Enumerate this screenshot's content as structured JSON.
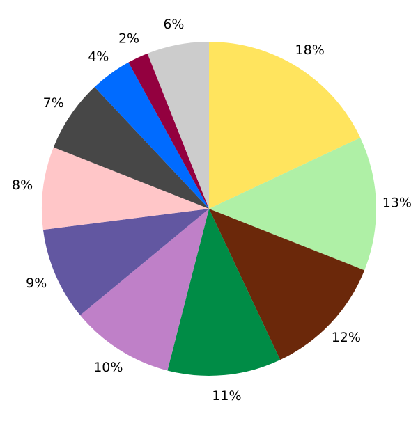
{
  "chart_data": {
    "type": "pie",
    "start_angle": "top",
    "direction": "clockwise",
    "values": [
      18,
      13,
      12,
      11,
      10,
      9,
      8,
      7,
      4,
      2,
      6
    ],
    "labels": [
      "18%",
      "13%",
      "12%",
      "11%",
      "10%",
      "9%",
      "8%",
      "7%",
      "4%",
      "2%",
      "6%"
    ],
    "colors": [
      "#ffe45e",
      "#aff0a6",
      "#6b280a",
      "#008c46",
      "#bf80c8",
      "#6257a1",
      "#ffc6c8",
      "#474747",
      "#006bff",
      "#93003f",
      "#cccccc"
    ],
    "legend": "none"
  }
}
